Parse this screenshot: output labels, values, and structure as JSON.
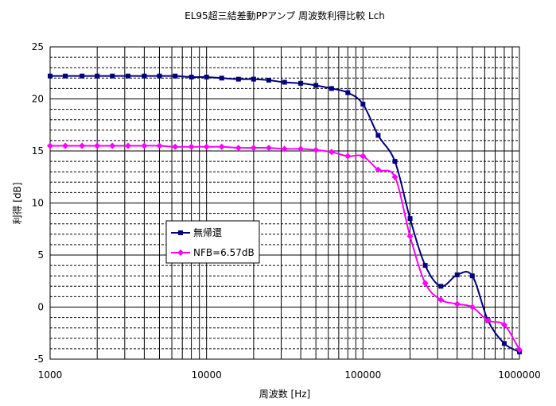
{
  "chart_data": {
    "type": "line",
    "title": "EL95超三結差動PPアンプ 周波数利得比較 Lch",
    "xlabel": "周波数 [Hz]",
    "ylabel": "利得 [dB]",
    "x_scale": "log",
    "xlim": [
      1000,
      1000000
    ],
    "ylim": [
      -5,
      25
    ],
    "y_major_step": 5,
    "y_minor_step": 1,
    "x_tick_labels": [
      "1000",
      "10000",
      "100000",
      "1000000"
    ],
    "y_tick_labels": [
      "-5",
      "0",
      "5",
      "10",
      "15",
      "20",
      "25"
    ],
    "grid": true,
    "legend_position": "center-left",
    "series": [
      {
        "name": "無帰還",
        "color": "#000080",
        "marker": "square",
        "x": [
          1000,
          1250,
          1600,
          2000,
          2500,
          3150,
          4000,
          5000,
          6300,
          8000,
          10000,
          12500,
          16000,
          20000,
          25000,
          31500,
          40000,
          50000,
          63000,
          80000,
          100000,
          125000,
          160000,
          200000,
          250000,
          315000,
          400000,
          500000,
          630000,
          800000,
          1000000
        ],
        "y": [
          22.2,
          22.2,
          22.2,
          22.2,
          22.2,
          22.2,
          22.2,
          22.2,
          22.2,
          22.1,
          22.1,
          22.0,
          21.9,
          21.9,
          21.8,
          21.6,
          21.5,
          21.3,
          21.0,
          20.6,
          19.5,
          16.5,
          14.0,
          8.5,
          4.0,
          2.0,
          3.1,
          3.0,
          -1.3,
          -3.5,
          -4.3
        ]
      },
      {
        "name": "NFB=6.57dB",
        "color": "#ff00ff",
        "marker": "diamond",
        "x": [
          1000,
          1250,
          1600,
          2000,
          2500,
          3150,
          4000,
          5000,
          6300,
          8000,
          10000,
          12500,
          16000,
          20000,
          25000,
          31500,
          40000,
          50000,
          63000,
          80000,
          100000,
          125000,
          160000,
          200000,
          250000,
          315000,
          400000,
          500000,
          630000,
          800000,
          1000000
        ],
        "y": [
          15.5,
          15.5,
          15.5,
          15.5,
          15.5,
          15.5,
          15.5,
          15.5,
          15.4,
          15.4,
          15.4,
          15.4,
          15.3,
          15.3,
          15.3,
          15.2,
          15.2,
          15.1,
          14.9,
          14.5,
          14.5,
          13.2,
          12.5,
          6.8,
          2.3,
          0.7,
          0.3,
          0.0,
          -1.3,
          -1.7,
          -4.1
        ]
      }
    ]
  }
}
